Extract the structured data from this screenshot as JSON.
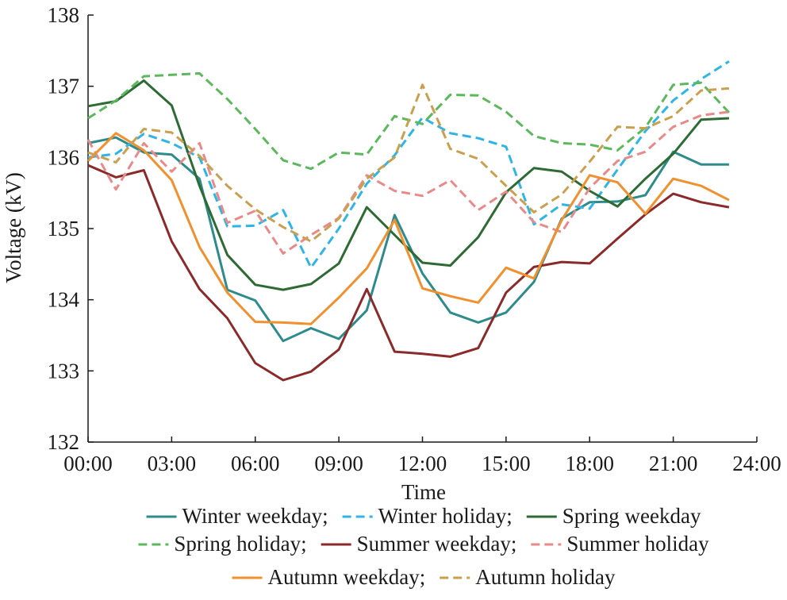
{
  "chart_data": {
    "type": "line",
    "xlabel": "Time",
    "ylabel": "Voltage (kV)",
    "xlim": [
      0,
      24
    ],
    "ylim": [
      132,
      138
    ],
    "x_ticks": [
      {
        "value": 0,
        "label": "00:00"
      },
      {
        "value": 3,
        "label": "03:00"
      },
      {
        "value": 6,
        "label": "06:00"
      },
      {
        "value": 9,
        "label": "09:00"
      },
      {
        "value": 12,
        "label": "12:00"
      },
      {
        "value": 15,
        "label": "15:00"
      },
      {
        "value": 18,
        "label": "18:00"
      },
      {
        "value": 21,
        "label": "21:00"
      },
      {
        "value": 24,
        "label": "24:00"
      }
    ],
    "y_ticks": [
      {
        "value": 132,
        "label": "132"
      },
      {
        "value": 133,
        "label": "133"
      },
      {
        "value": 134,
        "label": "134"
      },
      {
        "value": 135,
        "label": "135"
      },
      {
        "value": 136,
        "label": "136"
      },
      {
        "value": 137,
        "label": "137"
      },
      {
        "value": 138,
        "label": "138"
      }
    ],
    "grid": false,
    "legend_position": "bottom",
    "x": [
      0,
      1,
      2,
      3,
      4,
      5,
      6,
      7,
      8,
      9,
      10,
      11,
      12,
      13,
      14,
      15,
      16,
      17,
      18,
      19,
      20,
      21,
      22,
      23
    ],
    "series": [
      {
        "name": "Winter weekday;",
        "color": "#2e8b8b",
        "dash": "solid",
        "values": [
          136.2,
          136.28,
          136.07,
          136.04,
          135.7,
          134.14,
          133.99,
          133.42,
          133.6,
          133.45,
          133.85,
          135.19,
          134.37,
          133.82,
          133.68,
          133.82,
          134.25,
          135.14,
          135.37,
          135.38,
          135.47,
          136.08,
          135.9,
          135.9
        ]
      },
      {
        "name": "Winter holiday;",
        "color": "#2fb5e5",
        "dash": "dashed",
        "values": [
          136.0,
          136.05,
          136.33,
          136.2,
          136.0,
          135.03,
          135.04,
          135.26,
          134.45,
          135.0,
          135.63,
          136.03,
          136.56,
          136.34,
          136.27,
          136.15,
          135.06,
          135.34,
          135.28,
          135.83,
          136.37,
          136.8,
          137.1,
          137.35
        ]
      },
      {
        "name": "Spring weekday",
        "color": "#2e6b34",
        "dash": "solid",
        "values": [
          136.72,
          136.79,
          137.08,
          136.73,
          135.6,
          134.63,
          134.21,
          134.14,
          134.22,
          134.51,
          135.3,
          134.91,
          134.52,
          134.48,
          134.88,
          135.51,
          135.85,
          135.8,
          135.53,
          135.31,
          135.7,
          136.05,
          136.53,
          136.55
        ]
      },
      {
        "name": "Spring holiday;",
        "color": "#5cb85c",
        "dash": "dashed",
        "values": [
          136.55,
          136.8,
          137.14,
          137.16,
          137.18,
          136.82,
          136.4,
          135.96,
          135.84,
          136.07,
          136.04,
          136.58,
          136.47,
          136.88,
          136.87,
          136.64,
          136.3,
          136.2,
          136.18,
          136.1,
          136.42,
          137.02,
          137.05,
          136.63
        ]
      },
      {
        "name": "Summer weekday;",
        "color": "#8b2a2a",
        "dash": "solid",
        "values": [
          135.89,
          135.72,
          135.82,
          134.82,
          134.15,
          133.74,
          133.11,
          132.87,
          132.99,
          133.3,
          134.15,
          133.27,
          133.24,
          133.2,
          133.32,
          134.1,
          134.46,
          134.53,
          134.51,
          134.86,
          135.2,
          135.49,
          135.37,
          135.3
        ]
      },
      {
        "name": "Summer holiday",
        "color": "#e88a8a",
        "dash": "dashed",
        "values": [
          136.25,
          135.55,
          136.2,
          135.8,
          136.2,
          135.08,
          135.25,
          134.65,
          134.91,
          135.15,
          135.75,
          135.53,
          135.46,
          135.68,
          135.26,
          135.52,
          135.09,
          134.95,
          135.57,
          135.95,
          136.08,
          136.43,
          136.59,
          136.64
        ]
      },
      {
        "name": "Autumn weekday;",
        "color": "#f0902e",
        "dash": "solid",
        "values": [
          135.95,
          136.34,
          136.1,
          135.68,
          134.74,
          134.1,
          133.69,
          133.68,
          133.66,
          134.03,
          134.44,
          135.12,
          134.16,
          134.05,
          133.96,
          134.45,
          134.3,
          135.12,
          135.75,
          135.65,
          135.21,
          135.7,
          135.6,
          135.4
        ]
      },
      {
        "name": "Autumn holiday",
        "color": "#c9a050",
        "dash": "dashed",
        "values": [
          136.07,
          135.93,
          136.4,
          136.35,
          136.02,
          135.6,
          135.27,
          135.02,
          134.82,
          135.14,
          135.7,
          136.0,
          137.02,
          136.12,
          135.98,
          135.6,
          135.23,
          135.48,
          135.94,
          136.43,
          136.41,
          136.58,
          136.94,
          136.97
        ]
      }
    ]
  }
}
